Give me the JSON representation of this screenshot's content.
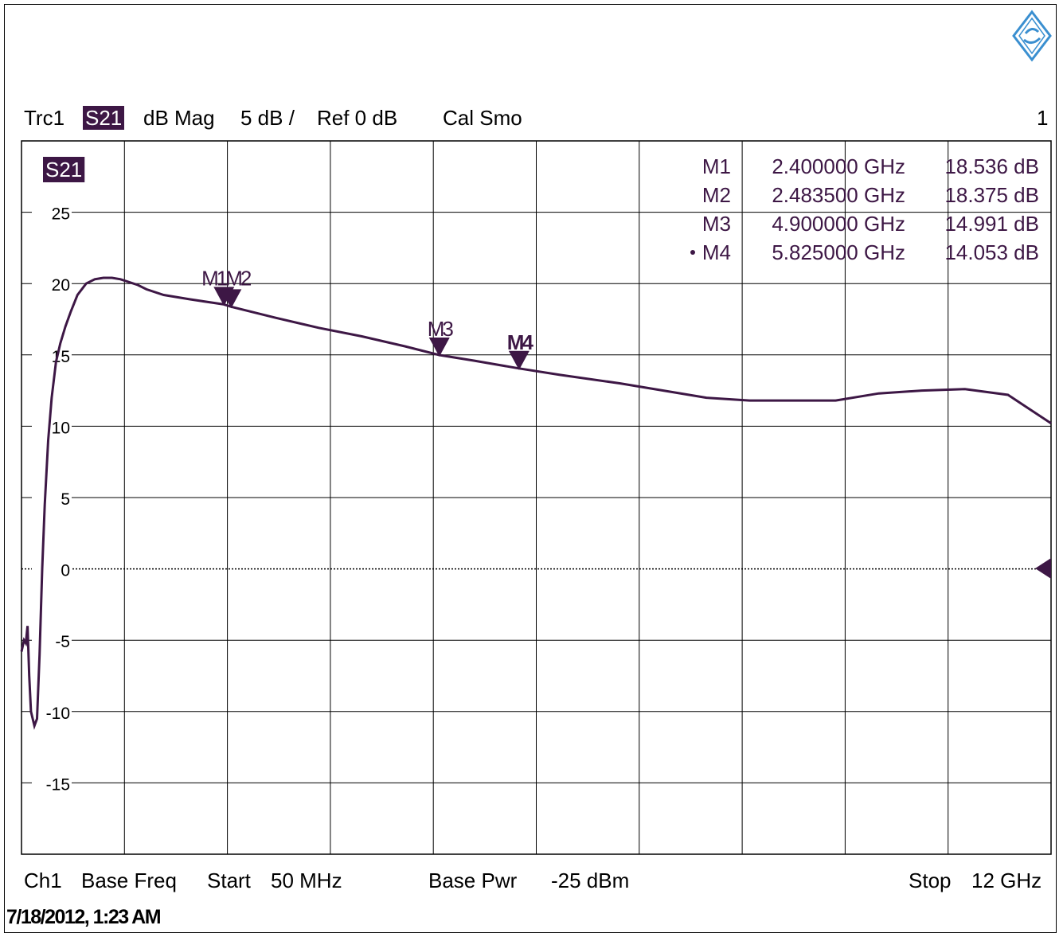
{
  "header": {
    "trace": "Trc1",
    "param": "S21",
    "format": "dB Mag",
    "scale": "5 dB /",
    "ref": "Ref 0 dB",
    "flags": "Cal Smo",
    "channel_index": "1"
  },
  "footer": {
    "channel": "Ch1",
    "base_freq_label": "Base Freq",
    "start_label": "Start",
    "start_value": "50 MHz",
    "base_pwr_label": "Base Pwr",
    "base_pwr_value": "-25 dBm",
    "stop_label": "Stop",
    "stop_value": "12 GHz"
  },
  "timestamp": "7/18/2012, 1:23 AM",
  "colors": {
    "trace": "#3d1745",
    "grid": "#000000",
    "background": "#ffffff"
  },
  "chart_data": {
    "type": "line",
    "trace_label": "S21",
    "x_unit": "GHz",
    "xlim": [
      0.05,
      12
    ],
    "ylim": [
      -20,
      30
    ],
    "y_ticks": [
      25,
      20,
      15,
      10,
      5,
      0,
      -5,
      -10,
      -15
    ],
    "x_divisions": 10,
    "grid": true,
    "reference_level": 0,
    "series": [
      {
        "x": [
          0.05,
          0.08,
          0.1,
          0.12,
          0.14,
          0.16,
          0.2,
          0.23,
          0.26,
          0.29,
          0.32,
          0.36,
          0.4,
          0.45,
          0.5,
          0.56,
          0.62,
          0.7,
          0.8,
          0.9,
          1.0,
          1.1,
          1.2,
          1.3,
          1.4,
          1.5,
          1.7,
          2.0,
          2.4,
          2.4835,
          3.0,
          3.5,
          4.0,
          4.5,
          4.9,
          5.3,
          5.825,
          6.3,
          7.0,
          7.5,
          8.0,
          8.5,
          9.0,
          9.5,
          10.0,
          10.5,
          11.0,
          11.5,
          12.0
        ],
        "y": [
          -5.8,
          -5.0,
          -5.2,
          -4.0,
          -7.5,
          -10.0,
          -11.0,
          -10.5,
          -6.0,
          0.0,
          4.5,
          9.0,
          12.0,
          14.5,
          15.8,
          17.0,
          18.0,
          19.2,
          20.0,
          20.3,
          20.4,
          20.4,
          20.3,
          20.1,
          19.9,
          19.6,
          19.2,
          18.9,
          18.536,
          18.375,
          17.6,
          16.9,
          16.3,
          15.6,
          14.991,
          14.6,
          14.053,
          13.6,
          13.0,
          12.5,
          12.0,
          11.8,
          11.8,
          11.8,
          12.3,
          12.5,
          12.6,
          12.2,
          10.2
        ]
      }
    ],
    "markers": [
      {
        "label": "M1",
        "x": 2.4,
        "y": 18.536,
        "freq": "2.400000 GHz",
        "value": "18.536 dB",
        "active": false
      },
      {
        "label": "M2",
        "x": 2.4835,
        "y": 18.375,
        "freq": "2.483500 GHz",
        "value": "18.375 dB",
        "active": false
      },
      {
        "label": "M3",
        "x": 4.9,
        "y": 14.991,
        "freq": "4.900000 GHz",
        "value": "14.991 dB",
        "active": false
      },
      {
        "label": "M4",
        "x": 5.825,
        "y": 14.053,
        "freq": "5.825000 GHz",
        "value": "14.053 dB",
        "active": true
      }
    ],
    "marker_overlap_label": "M1M2"
  }
}
